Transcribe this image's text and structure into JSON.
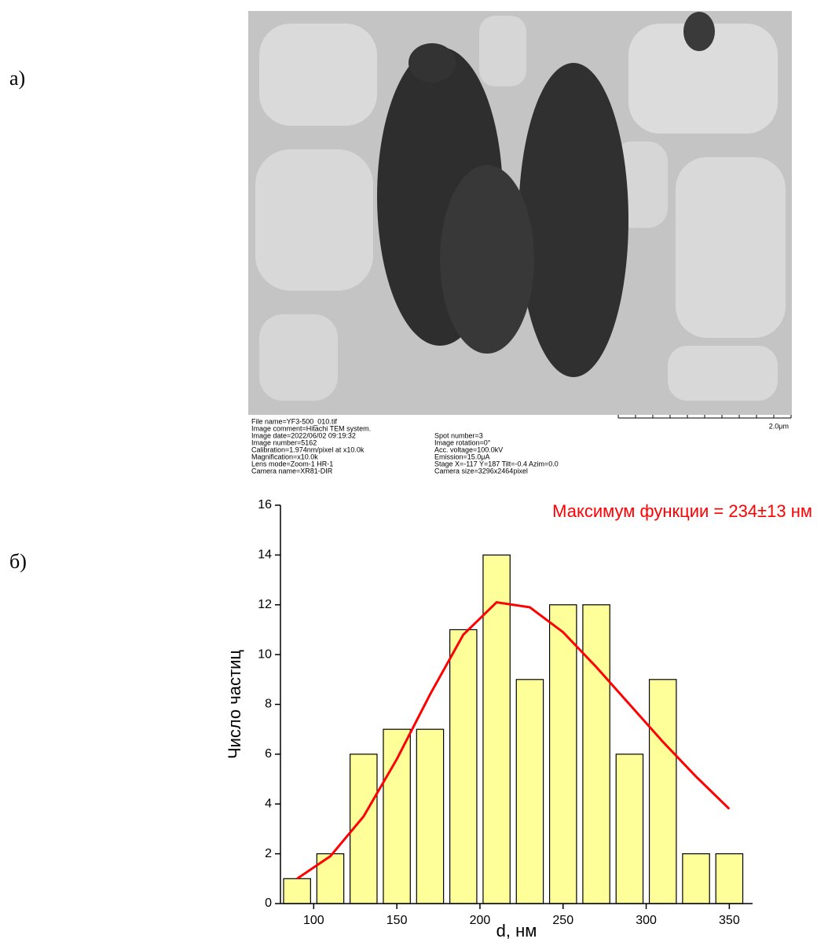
{
  "panels": {
    "a": "а)",
    "b": "б)"
  },
  "image_info": {
    "left": [
      "File name=YF3-500_010.tif",
      "Image comment=Hitachi TEM system.",
      "Image date=2022/06/02 09:19:32",
      "Image number=5162",
      "Calibration=1.974nm/pixel at x10.0k",
      "Magnification=x10.0k",
      "Lens mode=Zoom-1 HR-1",
      "Camera name=XR81-DIR"
    ],
    "right": [
      "Spot number=3",
      "Image rotation=0°",
      "Acc. voltage=100.0kV",
      "Emission=15.0μA",
      "Stage X=-117 Y=187 Tilt=-0.4 Azim=0.0",
      "Camera size=3296x2464pixel"
    ],
    "scale": "2.0μm"
  },
  "chart_data": {
    "type": "histogram",
    "annotation": "Максимум функции = 234±13 нм",
    "x_label": "d, нм",
    "y_label": "Число частиц",
    "bins": [
      80,
      100,
      120,
      140,
      160,
      180,
      200,
      220,
      240,
      260,
      280,
      300,
      320,
      340,
      360
    ],
    "values": [
      1,
      2,
      6,
      7,
      7,
      11,
      14,
      9,
      12,
      12,
      6,
      9,
      2,
      2
    ],
    "color": "#ffff99",
    "curve": {
      "color": "#ff0000",
      "x": [
        90,
        110,
        130,
        150,
        170,
        190,
        210,
        230,
        250,
        270,
        290,
        310,
        330,
        350
      ],
      "values": [
        1.0,
        1.9,
        3.5,
        5.8,
        8.4,
        10.8,
        12.1,
        11.9,
        10.9,
        9.5,
        8.0,
        6.5,
        5.1,
        3.8
      ]
    },
    "xlim": [
      80,
      364
    ],
    "ylim": [
      0,
      16
    ],
    "xticks": [
      100,
      150,
      200,
      250,
      300,
      350
    ],
    "yticks": [
      0,
      2,
      4,
      6,
      8,
      10,
      12,
      14,
      16
    ]
  }
}
